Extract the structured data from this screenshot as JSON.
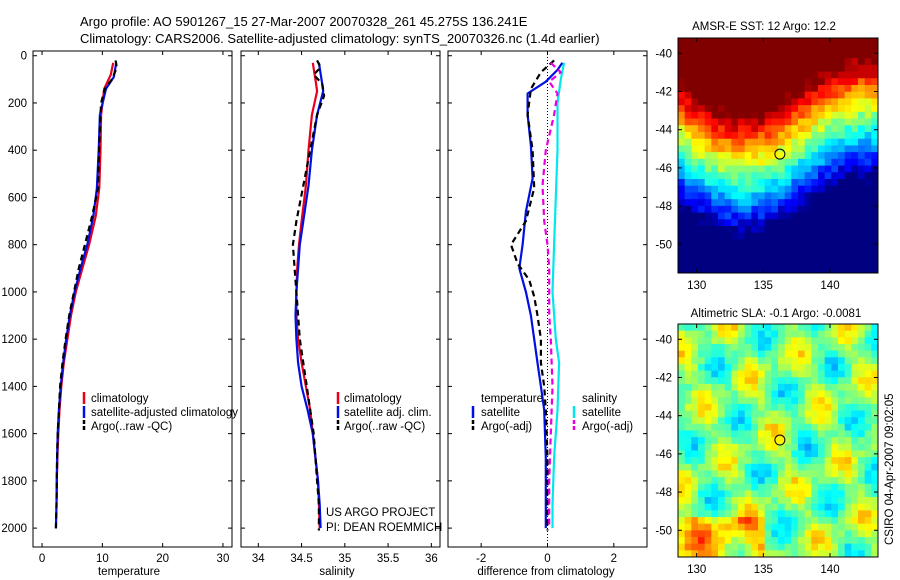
{
  "header": {
    "line1": "Argo profile: AO 5901267_15 27-Mar-2007 20070328_261 45.275S 136.241E",
    "line2": "Climatology: CARS2006. Satellite-adjusted climatology: synTS_20070326.nc (1.4d earlier)"
  },
  "footer": {
    "project": "US ARGO PROJECT",
    "pi": "PI: DEAN ROEMMICH",
    "stamp": "CSIRO 04-Apr-2007 09:02:05"
  },
  "colors": {
    "red": "#e8001c",
    "blue": "#0010e0",
    "black": "#000000",
    "cyan": "#00e8ec",
    "magenta": "#e800e0"
  },
  "chart_data": [
    {
      "type": "line",
      "xlabel": "temperature",
      "ylabel": "",
      "xlim": [
        -1.5,
        31.5
      ],
      "ylim": [
        2080,
        -20
      ],
      "x_ticks": [
        0,
        10,
        20,
        30
      ],
      "y_ticks": [
        0,
        200,
        400,
        600,
        800,
        1000,
        1200,
        1400,
        1600,
        1800,
        2000
      ],
      "legend": [
        "climatology",
        "satellite-adjusted climatology",
        "Argo(..raw -QC)"
      ],
      "series": [
        {
          "name": "climatology",
          "color": "red",
          "dash": "solid",
          "points": [
            [
              11.8,
              30
            ],
            [
              11.4,
              80
            ],
            [
              10.3,
              140
            ],
            [
              9.8,
              250
            ],
            [
              9.7,
              400
            ],
            [
              9.5,
              560
            ],
            [
              8.9,
              680
            ],
            [
              7.8,
              800
            ],
            [
              6.7,
              900
            ],
            [
              5.6,
              1000
            ],
            [
              4.8,
              1100
            ],
            [
              4.2,
              1200
            ],
            [
              3.6,
              1300
            ],
            [
              3.2,
              1400
            ],
            [
              2.9,
              1500
            ],
            [
              2.7,
              1600
            ],
            [
              2.55,
              1700
            ],
            [
              2.45,
              1800
            ],
            [
              2.4,
              1880
            ]
          ]
        },
        {
          "name": "satellite-adjusted climatology",
          "color": "blue",
          "dash": "solid",
          "points": [
            [
              12.3,
              30
            ],
            [
              11.9,
              90
            ],
            [
              10.6,
              140
            ],
            [
              9.6,
              250
            ],
            [
              9.4,
              400
            ],
            [
              9.1,
              560
            ],
            [
              8.5,
              680
            ],
            [
              7.5,
              800
            ],
            [
              6.4,
              900
            ],
            [
              5.4,
              1000
            ],
            [
              4.6,
              1100
            ],
            [
              4.0,
              1200
            ],
            [
              3.5,
              1300
            ],
            [
              3.1,
              1400
            ],
            [
              2.8,
              1500
            ],
            [
              2.6,
              1600
            ],
            [
              2.5,
              1700
            ],
            [
              2.45,
              1800
            ],
            [
              2.4,
              1900
            ],
            [
              2.3,
              2000
            ]
          ]
        },
        {
          "name": "Argo(..raw -QC)",
          "color": "black",
          "dash": "dash",
          "points": [
            [
              12.2,
              20
            ],
            [
              12.4,
              50
            ],
            [
              11.6,
              100
            ],
            [
              10.4,
              140
            ],
            [
              9.8,
              200
            ],
            [
              9.6,
              300
            ],
            [
              9.4,
              450
            ],
            [
              9.3,
              560
            ],
            [
              8.3,
              680
            ],
            [
              7.1,
              800
            ],
            [
              6.1,
              900
            ],
            [
              5.3,
              1000
            ],
            [
              4.5,
              1100
            ],
            [
              3.9,
              1200
            ],
            [
              3.4,
              1300
            ],
            [
              3.0,
              1400
            ],
            [
              2.8,
              1500
            ],
            [
              2.6,
              1600
            ],
            [
              2.5,
              1700
            ],
            [
              2.45,
              1800
            ],
            [
              2.4,
              1900
            ],
            [
              2.3,
              2010
            ]
          ]
        }
      ]
    },
    {
      "type": "line",
      "xlabel": "salinity",
      "ylabel": "",
      "xlim": [
        33.8,
        36.1
      ],
      "ylim": [
        2080,
        -20
      ],
      "x_ticks": [
        34,
        34.5,
        35,
        35.5,
        36
      ],
      "x_tick_labels": [
        "34",
        "34.5",
        "35",
        "35.5",
        "36"
      ],
      "y_ticks": [
        0,
        200,
        400,
        600,
        800,
        1000,
        1200,
        1400,
        1600,
        1800,
        2000
      ],
      "legend": [
        "climatology",
        "satellite adj. clim.",
        "Argo(..raw -QC)"
      ],
      "series": [
        {
          "name": "climatology",
          "color": "red",
          "dash": "solid",
          "points": [
            [
              34.63,
              30
            ],
            [
              34.66,
              100
            ],
            [
              34.68,
              150
            ],
            [
              34.62,
              250
            ],
            [
              34.58,
              400
            ],
            [
              34.55,
              550
            ],
            [
              34.5,
              700
            ],
            [
              34.47,
              800
            ],
            [
              34.45,
              900
            ],
            [
              34.44,
              1000
            ],
            [
              34.44,
              1100
            ],
            [
              34.46,
              1200
            ],
            [
              34.5,
              1300
            ],
            [
              34.55,
              1400
            ],
            [
              34.6,
              1500
            ],
            [
              34.63,
              1600
            ],
            [
              34.66,
              1700
            ],
            [
              34.69,
              1800
            ],
            [
              34.7,
              1900
            ],
            [
              34.71,
              2000
            ]
          ]
        },
        {
          "name": "satellite adj. clim.",
          "color": "blue",
          "dash": "solid",
          "points": [
            [
              34.7,
              30
            ],
            [
              34.73,
              100
            ],
            [
              34.75,
              150
            ],
            [
              34.68,
              250
            ],
            [
              34.62,
              400
            ],
            [
              34.58,
              550
            ],
            [
              34.52,
              700
            ],
            [
              34.48,
              800
            ],
            [
              34.46,
              900
            ],
            [
              34.44,
              1000
            ],
            [
              34.43,
              1100
            ],
            [
              34.44,
              1200
            ],
            [
              34.46,
              1300
            ],
            [
              34.5,
              1400
            ],
            [
              34.57,
              1500
            ],
            [
              34.63,
              1600
            ],
            [
              34.66,
              1700
            ],
            [
              34.69,
              1800
            ],
            [
              34.71,
              1900
            ],
            [
              34.72,
              2000
            ]
          ]
        },
        {
          "name": "Argo(..raw -QC)",
          "color": "black",
          "dash": "dash",
          "points": [
            [
              34.68,
              20
            ],
            [
              34.72,
              50
            ],
            [
              34.64,
              80
            ],
            [
              34.74,
              120
            ],
            [
              34.76,
              170
            ],
            [
              34.68,
              250
            ],
            [
              34.6,
              400
            ],
            [
              34.52,
              550
            ],
            [
              34.44,
              700
            ],
            [
              34.4,
              800
            ],
            [
              34.42,
              900
            ],
            [
              34.44,
              1000
            ],
            [
              34.46,
              1100
            ],
            [
              34.48,
              1200
            ],
            [
              34.52,
              1300
            ],
            [
              34.56,
              1400
            ],
            [
              34.6,
              1500
            ],
            [
              34.64,
              1600
            ],
            [
              34.66,
              1700
            ],
            [
              34.68,
              1800
            ],
            [
              34.7,
              1900
            ],
            [
              34.7,
              2010
            ]
          ]
        }
      ]
    },
    {
      "type": "line",
      "xlabel": "difference from climatology",
      "ylabel": "",
      "xlim": [
        -3,
        3
      ],
      "ylim": [
        2080,
        -20
      ],
      "x_ticks": [
        -2,
        0,
        2
      ],
      "y_ticks": [
        0,
        200,
        400,
        600,
        800,
        1000,
        1200,
        1400,
        1600,
        1800,
        2000
      ],
      "legend_titles": [
        "temperature",
        "salinity"
      ],
      "legend": [
        "satellite",
        "Argo(-adj)",
        "satellite",
        "Argo(-adj)"
      ],
      "series": [
        {
          "name": "satellite",
          "group": "temperature",
          "color": "blue",
          "dash": "solid",
          "points": [
            [
              0.45,
              30
            ],
            [
              0.3,
              60
            ],
            [
              -0.05,
              110
            ],
            [
              -0.6,
              160
            ],
            [
              -0.6,
              250
            ],
            [
              -0.5,
              380
            ],
            [
              -0.45,
              520
            ],
            [
              -0.65,
              660
            ],
            [
              -0.75,
              800
            ],
            [
              -0.85,
              900
            ],
            [
              -0.65,
              1000
            ],
            [
              -0.5,
              1100
            ],
            [
              -0.4,
              1200
            ],
            [
              -0.3,
              1300
            ],
            [
              -0.2,
              1400
            ],
            [
              -0.1,
              1500
            ],
            [
              -0.05,
              1700
            ],
            [
              -0.05,
              1900
            ],
            [
              -0.05,
              2000
            ]
          ]
        },
        {
          "name": "Argo(-adj)",
          "group": "temperature",
          "color": "black",
          "dash": "dash",
          "points": [
            [
              0.2,
              20
            ],
            [
              -0.2,
              70
            ],
            [
              -0.5,
              140
            ],
            [
              -0.6,
              250
            ],
            [
              -0.45,
              400
            ],
            [
              -0.4,
              560
            ],
            [
              -0.65,
              700
            ],
            [
              -1.1,
              800
            ],
            [
              -0.9,
              880
            ],
            [
              -0.55,
              950
            ],
            [
              -0.4,
              1020
            ],
            [
              -0.3,
              1100
            ],
            [
              -0.2,
              1200
            ],
            [
              -0.2,
              1300
            ],
            [
              -0.1,
              1400
            ],
            [
              -0.05,
              1500
            ],
            [
              0,
              1700
            ],
            [
              0,
              1900
            ],
            [
              0,
              2010
            ]
          ]
        },
        {
          "name": "satellite",
          "group": "salinity",
          "color": "cyan",
          "dash": "solid",
          "points": [
            [
              0.5,
              30
            ],
            [
              0.4,
              100
            ],
            [
              0.3,
              200
            ],
            [
              0.3,
              400
            ],
            [
              0.25,
              600
            ],
            [
              0.2,
              800
            ],
            [
              0.15,
              1000
            ],
            [
              0.25,
              1200
            ],
            [
              0.35,
              1300
            ],
            [
              0.3,
              1500
            ],
            [
              0.2,
              1700
            ],
            [
              0.15,
              1900
            ],
            [
              0.15,
              2000
            ]
          ]
        },
        {
          "name": "Argo(-adj)",
          "group": "salinity",
          "color": "magenta",
          "dash": "dash",
          "points": [
            [
              0.1,
              30
            ],
            [
              0.4,
              70
            ],
            [
              0.05,
              110
            ],
            [
              0.3,
              160
            ],
            [
              0.2,
              250
            ],
            [
              -0.05,
              400
            ],
            [
              -0.15,
              550
            ],
            [
              -0.1,
              700
            ],
            [
              0.0,
              800
            ],
            [
              0.05,
              900
            ],
            [
              0.05,
              1000
            ],
            [
              0.05,
              1100
            ],
            [
              0.1,
              1200
            ],
            [
              0.15,
              1400
            ],
            [
              0.1,
              1600
            ],
            [
              0.05,
              1800
            ],
            [
              0.05,
              2000
            ]
          ]
        }
      ]
    },
    {
      "type": "heatmap",
      "title": "AMSR-E SST: 12 Argo: 12.2",
      "xlim": [
        128.6,
        143.6
      ],
      "ylim": [
        -51.5,
        -39.2
      ],
      "x_ticks": [
        130,
        135,
        140
      ],
      "y_ticks": [
        -40,
        -42,
        -44,
        -46,
        -48,
        -50
      ],
      "marker": {
        "lon": 136.241,
        "lat": -45.275
      },
      "colormap": "jet"
    },
    {
      "type": "heatmap",
      "title": "Altimetric SLA: -0.1 Argo: -0.0081",
      "xlim": [
        128.6,
        143.6
      ],
      "ylim": [
        -51.4,
        -39.2
      ],
      "x_ticks": [
        130,
        135,
        140
      ],
      "y_ticks": [
        -40,
        -42,
        -44,
        -46,
        -48,
        -50
      ],
      "marker": {
        "lon": 136.241,
        "lat": -45.275
      },
      "colormap": "jet"
    }
  ]
}
